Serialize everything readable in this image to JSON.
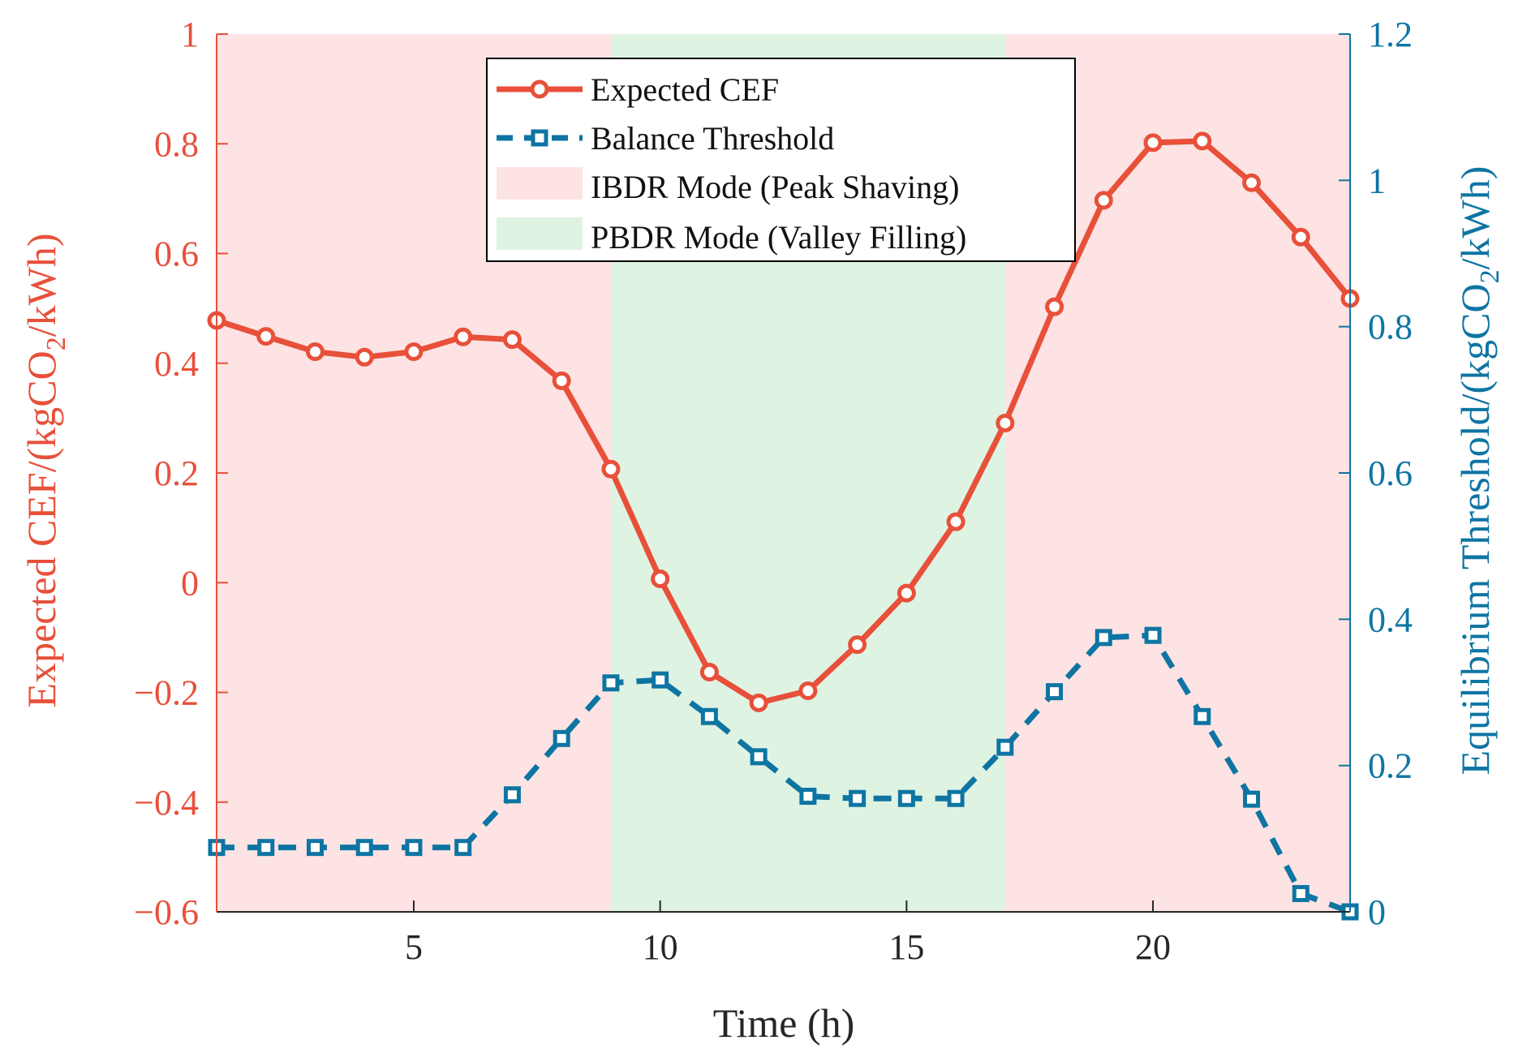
{
  "colors": {
    "cef": "#e8503a",
    "threshold": "#0e75a3",
    "ibdr_band": "#fde3e3",
    "pbdr_band": "#dff3e3",
    "axis_x": "#262626",
    "legend_border": "#000000"
  },
  "chart_data": {
    "type": "line",
    "xlabel": "Time (h)",
    "ylabel_left": {
      "main": "Expected CEF/(kgCO",
      "sub": "2",
      "tail": "/kWh)"
    },
    "ylabel_right": {
      "main": "Equilibrium Threshold/(kgCO",
      "sub": "2",
      "tail": "/kWh)"
    },
    "xlim": [
      1,
      24
    ],
    "ylim_left": [
      -0.6,
      1
    ],
    "ylim_right": [
      0,
      1.2
    ],
    "x_ticks": [
      5,
      10,
      15,
      20
    ],
    "x_tick_labels": [
      "5",
      "10",
      "15",
      "20"
    ],
    "y_left_ticks": [
      -0.6,
      -0.4,
      -0.2,
      0,
      0.2,
      0.4,
      0.6,
      0.8,
      1
    ],
    "y_left_tick_labels": [
      "−0.6",
      "−0.4",
      "−0.2",
      "0",
      "0.2",
      "0.4",
      "0.6",
      "0.8",
      "1"
    ],
    "y_right_ticks": [
      0,
      0.2,
      0.4,
      0.6,
      0.8,
      1,
      1.2
    ],
    "y_right_tick_labels": [
      "0",
      "0.2",
      "0.4",
      "0.6",
      "0.8",
      "1",
      "1.2"
    ],
    "bands": [
      {
        "name": "IBDR Mode (Peak Shaving)",
        "x": [
          1,
          9
        ]
      },
      {
        "name": "PBDR Mode (Valley Filling)",
        "x": [
          9,
          17
        ]
      },
      {
        "name": "IBDR Mode (Peak Shaving)",
        "x": [
          17,
          24
        ]
      }
    ],
    "x": [
      1,
      2,
      3,
      4,
      5,
      6,
      7,
      8,
      9,
      10,
      11,
      12,
      13,
      14,
      15,
      16,
      17,
      18,
      19,
      20,
      21,
      22,
      23,
      24
    ],
    "series": [
      {
        "name": "Expected CEF",
        "axis": "left",
        "marker": "circle",
        "values": [
          0.478,
          0.449,
          0.421,
          0.411,
          0.421,
          0.448,
          0.443,
          0.368,
          0.207,
          0.007,
          -0.163,
          -0.219,
          -0.197,
          -0.113,
          -0.019,
          0.111,
          0.291,
          0.503,
          0.697,
          0.802,
          0.805,
          0.729,
          0.63,
          0.518
        ]
      },
      {
        "name": "Balance Threshold",
        "axis": "right",
        "marker": "square",
        "values": [
          0.088,
          0.088,
          0.088,
          0.088,
          0.088,
          0.088,
          0.16,
          0.237,
          0.313,
          0.317,
          0.267,
          0.212,
          0.158,
          0.155,
          0.155,
          0.155,
          0.225,
          0.301,
          0.375,
          0.378,
          0.267,
          0.154,
          0.025,
          0.0
        ]
      }
    ],
    "legend": {
      "position": "top-center",
      "entries": [
        "Expected CEF",
        "Balance Threshold",
        "IBDR Mode (Peak Shaving)",
        "PBDR Mode (Valley Filling)"
      ]
    }
  }
}
